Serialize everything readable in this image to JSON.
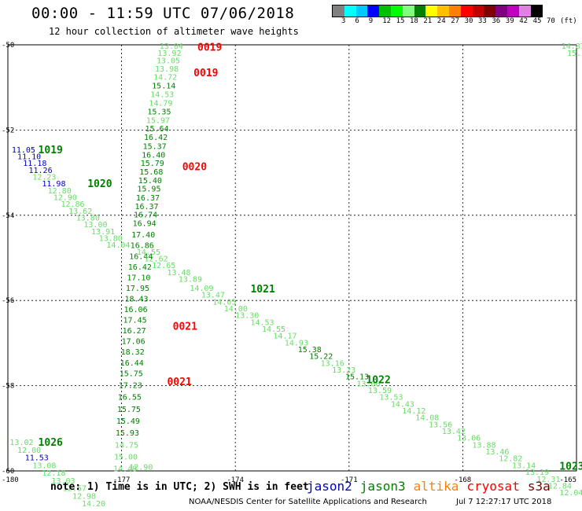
{
  "header": {
    "title": "00:00 - 11:59 UTC 07/06/2018",
    "subtitle": "12 hour collection of altimeter wave heights"
  },
  "legend": {
    "unit_label": "(ft)",
    "colors": [
      "#808080",
      "#00ffff",
      "#00c8ff",
      "#0000ff",
      "#00c000",
      "#00ff00",
      "#80ff80",
      "#008000",
      "#ffff00",
      "#ffc000",
      "#ff8000",
      "#ff0000",
      "#c00000",
      "#800000",
      "#800080",
      "#c000c0",
      "#e080e0",
      "#000000"
    ],
    "labels": [
      "3",
      "6",
      "9",
      "12",
      "15",
      "18",
      "21",
      "24",
      "27",
      "30",
      "33",
      "36",
      "39",
      "42",
      "45",
      "70"
    ]
  },
  "axes": {
    "x_ticks": [
      "-180",
      "-177",
      "-174",
      "-171",
      "-168",
      "-165"
    ],
    "x_tick_values": [
      -180,
      -177,
      -174,
      -171,
      -168,
      -165
    ],
    "y_ticks": [
      "-50",
      "-52",
      "-54",
      "-56",
      "-58",
      "-60"
    ],
    "y_tick_values": [
      -50,
      -52,
      -54,
      -56,
      -58,
      -60
    ]
  },
  "colors": {
    "jason2": "#0000c0",
    "jason3": "#008000",
    "altika": "#ff8000",
    "cryosat": "#ff0000",
    "s3a": "#800000",
    "light_green": "#66dd66",
    "dark_green": "#008000"
  },
  "pass_labels": [
    {
      "text": "0019",
      "lon": -175.0,
      "lat": -50.05,
      "color": "#ff0000"
    },
    {
      "text": "0019",
      "lon": -175.1,
      "lat": -50.65,
      "color": "#ff0000"
    },
    {
      "text": "0020",
      "lon": -175.4,
      "lat": -52.85,
      "color": "#ff0000"
    },
    {
      "text": "0021",
      "lon": -175.65,
      "lat": -56.6,
      "color": "#ff0000"
    },
    {
      "text": "0021",
      "lon": -175.8,
      "lat": -57.9,
      "color": "#ff0000"
    },
    {
      "text": "1019",
      "lon": -179.2,
      "lat": -52.45,
      "color": "#008000"
    },
    {
      "text": "1020",
      "lon": -177.9,
      "lat": -53.25,
      "color": "#008000"
    },
    {
      "text": "1021",
      "lon": -173.6,
      "lat": -55.72,
      "color": "#008000"
    },
    {
      "text": "1022",
      "lon": -170.55,
      "lat": -57.85,
      "color": "#008000"
    },
    {
      "text": "1026",
      "lon": -179.2,
      "lat": -59.32,
      "color": "#008000"
    },
    {
      "text": "1023",
      "lon": -165.45,
      "lat": -59.88,
      "color": "#008000"
    }
  ],
  "track_observations": [
    {
      "v": "13.04",
      "lon": -176.0,
      "lat": -50.02,
      "c": "light"
    },
    {
      "v": "13.92",
      "lon": -176.05,
      "lat": -50.18,
      "c": "light"
    },
    {
      "v": "13.05",
      "lon": -176.08,
      "lat": -50.36,
      "c": "light"
    },
    {
      "v": "13.98",
      "lon": -176.12,
      "lat": -50.55,
      "c": "light"
    },
    {
      "v": "14.72",
      "lon": -176.16,
      "lat": -50.75,
      "c": "light"
    },
    {
      "v": "15.14",
      "lon": -176.2,
      "lat": -50.95,
      "c": "dark"
    },
    {
      "v": "14.53",
      "lon": -176.24,
      "lat": -51.15,
      "c": "light"
    },
    {
      "v": "14.79",
      "lon": -176.28,
      "lat": -51.36,
      "c": "light"
    },
    {
      "v": "15.35",
      "lon": -176.32,
      "lat": -51.56,
      "c": "dark"
    },
    {
      "v": "15.97",
      "lon": -176.35,
      "lat": -51.76,
      "c": "light"
    },
    {
      "v": "15.64",
      "lon": -176.38,
      "lat": -51.96,
      "c": "dark"
    },
    {
      "v": "16.42",
      "lon": -176.41,
      "lat": -52.16,
      "c": "dark"
    },
    {
      "v": "15.37",
      "lon": -176.44,
      "lat": -52.37,
      "c": "dark"
    },
    {
      "v": "16.40",
      "lon": -176.47,
      "lat": -52.57,
      "c": "dark"
    },
    {
      "v": "15.79",
      "lon": -176.5,
      "lat": -52.77,
      "c": "dark"
    },
    {
      "v": "15.68",
      "lon": -176.53,
      "lat": -52.97,
      "c": "dark"
    },
    {
      "v": "15.40",
      "lon": -176.56,
      "lat": -53.17,
      "c": "dark"
    },
    {
      "v": "15.95",
      "lon": -176.59,
      "lat": -53.37,
      "c": "dark"
    },
    {
      "v": "16.37",
      "lon": -176.62,
      "lat": -53.58,
      "c": "dark"
    },
    {
      "v": "16.37",
      "lon": -176.65,
      "lat": -53.78,
      "c": "dark"
    },
    {
      "v": "16.74",
      "lon": -176.68,
      "lat": -53.98,
      "c": "dark"
    },
    {
      "v": "16.94",
      "lon": -176.71,
      "lat": -54.18,
      "c": "dark"
    },
    {
      "v": "17.40",
      "lon": -176.74,
      "lat": -54.45,
      "c": "dark"
    },
    {
      "v": "16.86",
      "lon": -176.77,
      "lat": -54.7,
      "c": "dark"
    },
    {
      "v": "16.44",
      "lon": -176.8,
      "lat": -54.95,
      "c": "dark"
    },
    {
      "v": "16.42",
      "lon": -176.83,
      "lat": -55.2,
      "c": "dark"
    },
    {
      "v": "17.10",
      "lon": -176.86,
      "lat": -55.45,
      "c": "dark"
    },
    {
      "v": "17.95",
      "lon": -176.89,
      "lat": -55.7,
      "c": "dark"
    },
    {
      "v": "18.43",
      "lon": -176.92,
      "lat": -55.95,
      "c": "dark"
    },
    {
      "v": "16.06",
      "lon": -176.94,
      "lat": -56.2,
      "c": "dark"
    },
    {
      "v": "17.45",
      "lon": -176.96,
      "lat": -56.45,
      "c": "dark"
    },
    {
      "v": "16.27",
      "lon": -176.98,
      "lat": -56.7,
      "c": "dark"
    },
    {
      "v": "17.06",
      "lon": -177.0,
      "lat": -56.95,
      "c": "dark"
    },
    {
      "v": "18.32",
      "lon": -177.02,
      "lat": -57.2,
      "c": "dark"
    },
    {
      "v": "16.44",
      "lon": -177.04,
      "lat": -57.45,
      "c": "dark"
    },
    {
      "v": "15.75",
      "lon": -177.06,
      "lat": -57.7,
      "c": "dark"
    },
    {
      "v": "17.23",
      "lon": -177.08,
      "lat": -57.98,
      "c": "dark"
    },
    {
      "v": "16.55",
      "lon": -177.1,
      "lat": -58.26,
      "c": "dark"
    },
    {
      "v": "15.75",
      "lon": -177.12,
      "lat": -58.54,
      "c": "dark"
    },
    {
      "v": "15.49",
      "lon": -177.14,
      "lat": -58.82,
      "c": "dark"
    },
    {
      "v": "15.93",
      "lon": -177.16,
      "lat": -59.1,
      "c": "dark"
    },
    {
      "v": "14.75",
      "lon": -177.18,
      "lat": -59.38,
      "c": "light"
    },
    {
      "v": "15.00",
      "lon": -177.2,
      "lat": -59.66,
      "c": "light"
    },
    {
      "v": "14.48",
      "lon": -177.22,
      "lat": -59.94,
      "c": "light"
    },
    {
      "v": "12.90",
      "lon": -176.8,
      "lat": -59.9,
      "c": "light"
    },
    {
      "v": "11.05",
      "lon": -179.9,
      "lat": -52.45,
      "c": "blue"
    },
    {
      "v": "11.10",
      "lon": -179.75,
      "lat": -52.61,
      "c": "blue"
    },
    {
      "v": "11.18",
      "lon": -179.6,
      "lat": -52.77,
      "c": "blue"
    },
    {
      "v": "11.26",
      "lon": -179.45,
      "lat": -52.93,
      "c": "blue"
    },
    {
      "v": "12.23",
      "lon": -179.35,
      "lat": -53.09,
      "c": "light"
    },
    {
      "v": "11.98",
      "lon": -179.1,
      "lat": -53.25,
      "c": "blue"
    },
    {
      "v": "12.80",
      "lon": -178.95,
      "lat": -53.41,
      "c": "light"
    },
    {
      "v": "12.90",
      "lon": -178.8,
      "lat": -53.57,
      "c": "light"
    },
    {
      "v": "12.86",
      "lon": -178.6,
      "lat": -53.73,
      "c": "light"
    },
    {
      "v": "13.62",
      "lon": -178.4,
      "lat": -53.89,
      "c": "light"
    },
    {
      "v": "13.80",
      "lon": -178.2,
      "lat": -54.05,
      "c": "light"
    },
    {
      "v": "13.00",
      "lon": -178.0,
      "lat": -54.21,
      "c": "light"
    },
    {
      "v": "13.91",
      "lon": -177.8,
      "lat": -54.37,
      "c": "light"
    },
    {
      "v": "13.80",
      "lon": -177.6,
      "lat": -54.53,
      "c": "light"
    },
    {
      "v": "14.04",
      "lon": -177.4,
      "lat": -54.69,
      "c": "light"
    },
    {
      "v": "14.55",
      "lon": -176.6,
      "lat": -54.85,
      "c": "light"
    },
    {
      "v": "12.62",
      "lon": -176.4,
      "lat": -55.01,
      "c": "light"
    },
    {
      "v": "12.65",
      "lon": -176.2,
      "lat": -55.17,
      "c": "light"
    },
    {
      "v": "13.48",
      "lon": -175.8,
      "lat": -55.33,
      "c": "light"
    },
    {
      "v": "13.89",
      "lon": -175.5,
      "lat": -55.49,
      "c": "light"
    },
    {
      "v": "14.09",
      "lon": -175.2,
      "lat": -55.7,
      "c": "light"
    },
    {
      "v": "13.47",
      "lon": -174.9,
      "lat": -55.86,
      "c": "light"
    },
    {
      "v": "14.05",
      "lon": -174.6,
      "lat": -56.02,
      "c": "light"
    },
    {
      "v": "14.00",
      "lon": -174.3,
      "lat": -56.18,
      "c": "light"
    },
    {
      "v": "13.30",
      "lon": -174.0,
      "lat": -56.34,
      "c": "light"
    },
    {
      "v": "14.53",
      "lon": -173.6,
      "lat": -56.5,
      "c": "light"
    },
    {
      "v": "14.55",
      "lon": -173.3,
      "lat": -56.66,
      "c": "light"
    },
    {
      "v": "14.17",
      "lon": -173.0,
      "lat": -56.82,
      "c": "light"
    },
    {
      "v": "14.93",
      "lon": -172.7,
      "lat": -56.98,
      "c": "light"
    },
    {
      "v": "15.38",
      "lon": -172.35,
      "lat": -57.14,
      "c": "dark"
    },
    {
      "v": "15.22",
      "lon": -172.05,
      "lat": -57.3,
      "c": "dark"
    },
    {
      "v": "13.16",
      "lon": -171.75,
      "lat": -57.46,
      "c": "light"
    },
    {
      "v": "13.23",
      "lon": -171.45,
      "lat": -57.62,
      "c": "light"
    },
    {
      "v": "15.13",
      "lon": -171.1,
      "lat": -57.78,
      "c": "dark"
    },
    {
      "v": "13.06",
      "lon": -170.8,
      "lat": -57.94,
      "c": "light"
    },
    {
      "v": "13.59",
      "lon": -170.5,
      "lat": -58.1,
      "c": "light"
    },
    {
      "v": "13.53",
      "lon": -170.2,
      "lat": -58.26,
      "c": "light"
    },
    {
      "v": "14.43",
      "lon": -169.9,
      "lat": -58.42,
      "c": "light"
    },
    {
      "v": "14.12",
      "lon": -169.6,
      "lat": -58.58,
      "c": "light"
    },
    {
      "v": "14.08",
      "lon": -169.25,
      "lat": -58.74,
      "c": "light"
    },
    {
      "v": "13.56",
      "lon": -168.9,
      "lat": -58.9,
      "c": "light"
    },
    {
      "v": "13.42",
      "lon": -168.55,
      "lat": -59.06,
      "c": "light"
    },
    {
      "v": "13.06",
      "lon": -168.15,
      "lat": -59.22,
      "c": "light"
    },
    {
      "v": "13.88",
      "lon": -167.75,
      "lat": -59.38,
      "c": "light"
    },
    {
      "v": "13.46",
      "lon": -167.4,
      "lat": -59.54,
      "c": "light"
    },
    {
      "v": "12.82",
      "lon": -167.05,
      "lat": -59.7,
      "c": "light"
    },
    {
      "v": "13.14",
      "lon": -166.7,
      "lat": -59.86,
      "c": "light"
    },
    {
      "v": "13.19",
      "lon": -166.35,
      "lat": -60.02,
      "c": "light"
    },
    {
      "v": "12.31",
      "lon": -166.05,
      "lat": -60.18,
      "c": "light"
    },
    {
      "v": "12.84",
      "lon": -165.75,
      "lat": -60.34,
      "c": "light"
    },
    {
      "v": "12.04",
      "lon": -165.45,
      "lat": -60.5,
      "c": "light"
    },
    {
      "v": "14.87",
      "lon": -165.4,
      "lat": -50.02,
      "c": "light"
    },
    {
      "v": "15.22",
      "lon": -165.25,
      "lat": -50.18,
      "c": "light"
    },
    {
      "v": "13.02",
      "lon": -179.95,
      "lat": -59.32,
      "c": "light"
    },
    {
      "v": "12.00",
      "lon": -179.75,
      "lat": -59.5,
      "c": "light"
    },
    {
      "v": "11.53",
      "lon": -179.55,
      "lat": -59.68,
      "c": "blue"
    },
    {
      "v": "13.08",
      "lon": -179.35,
      "lat": -59.86,
      "c": "light"
    },
    {
      "v": "12.18",
      "lon": -179.1,
      "lat": -60.04,
      "c": "light"
    },
    {
      "v": "13.03",
      "lon": -178.85,
      "lat": -60.22,
      "c": "light"
    },
    {
      "v": "12.57",
      "lon": -178.55,
      "lat": -60.4,
      "c": "light"
    },
    {
      "v": "12.98",
      "lon": -178.3,
      "lat": -60.58,
      "c": "light"
    },
    {
      "v": "14.20",
      "lon": -178.05,
      "lat": -60.76,
      "c": "light"
    }
  ],
  "footer": {
    "note": "note: 1) Time is in UTC; 2) SWH is in feet",
    "satellites": [
      {
        "name": "jason2",
        "color": "#0000c0"
      },
      {
        "name": "jason3",
        "color": "#008000"
      },
      {
        "name": "altika",
        "color": "#ff8000"
      },
      {
        "name": "cryosat",
        "color": "#ff0000"
      },
      {
        "name": "s3a",
        "color": "#800000"
      }
    ],
    "credit": "NOAA/NESDIS Center for Satellite Applications and Research",
    "timestamp": "Jul  7 12:27:17 UTC 2018"
  }
}
